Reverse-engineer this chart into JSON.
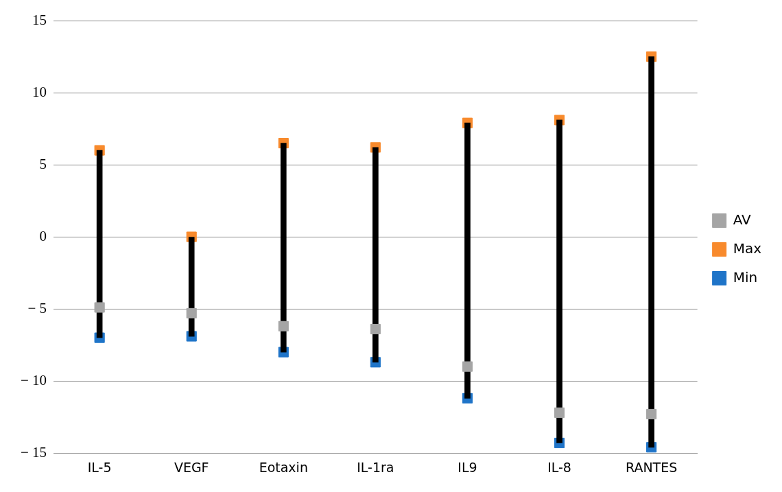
{
  "chart_data": {
    "type": "scatter",
    "categories": [
      "IL-5",
      "VEGF",
      "Eotaxin",
      "IL-1ra",
      "IL9",
      "IL-8",
      "RANTES"
    ],
    "ylim": [
      -15,
      15
    ],
    "yticks": [
      15,
      10,
      5,
      0,
      {
        "value": -5,
        "label": "− 5"
      },
      {
        "value": -10,
        "label": "− 10"
      },
      {
        "value": -15,
        "label": "− 15"
      }
    ],
    "grid": "y",
    "legend": "right",
    "series": [
      {
        "type": "bar",
        "color": "#000000",
        "base": [
          -7,
          -6.9,
          -8,
          -8.7,
          -11.2,
          -14.3,
          -14.6
        ],
        "values": [
          13,
          6.9,
          14.5,
          14.9,
          19.1,
          22.4,
          27.1
        ]
      },
      {
        "name": "Min",
        "marker": "square",
        "color": "#1f74c8",
        "x": [
          "IL-5",
          "VEGF",
          "Eotaxin",
          "IL-1ra",
          "IL9",
          "IL-8",
          "RANTES"
        ],
        "values": [
          -7,
          -6.9,
          -8,
          -8.7,
          -11.2,
          -14.3,
          -14.6
        ]
      },
      {
        "name": "Max",
        "marker": "square",
        "color": "#f88a2c",
        "x": [
          "IL-5",
          "VEGF",
          "Eotaxin",
          "IL-1ra",
          "IL9",
          "IL-8",
          "RANTES"
        ],
        "values": [
          6,
          0,
          6.5,
          6.2,
          7.9,
          8.1,
          12.5
        ]
      },
      {
        "name": "AV",
        "marker": "square",
        "color": "#a5a5a5",
        "x": [
          "IL-5",
          "VEGF",
          "Eotaxin",
          "IL-1ra",
          "IL9",
          "IL-8",
          "RANTES"
        ],
        "values": [
          -4.9,
          -5.3,
          -6.2,
          -6.4,
          -9,
          -12.2,
          -12.3
        ]
      }
    ]
  }
}
